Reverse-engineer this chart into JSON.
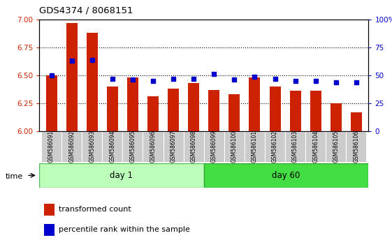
{
  "title": "GDS4374 / 8068151",
  "samples": [
    "GSM586091",
    "GSM586092",
    "GSM586093",
    "GSM586094",
    "GSM586095",
    "GSM586096",
    "GSM586097",
    "GSM586098",
    "GSM586099",
    "GSM586100",
    "GSM586101",
    "GSM586102",
    "GSM586103",
    "GSM586104",
    "GSM586105",
    "GSM586106"
  ],
  "red_values": [
    6.5,
    6.97,
    6.88,
    6.4,
    6.48,
    6.31,
    6.38,
    6.43,
    6.37,
    6.33,
    6.48,
    6.4,
    6.36,
    6.36,
    6.25,
    6.17
  ],
  "blue_values": [
    50,
    63,
    64,
    47,
    46,
    45,
    47,
    47,
    51,
    46,
    49,
    47,
    45,
    45,
    44,
    44
  ],
  "day1_count": 8,
  "day60_count": 8,
  "ylim_left": [
    6.0,
    7.0
  ],
  "ylim_right": [
    0,
    100
  ],
  "yticks_left": [
    6.0,
    6.25,
    6.5,
    6.75,
    7.0
  ],
  "yticks_right": [
    0,
    25,
    50,
    75,
    100
  ],
  "bar_color": "#cc2200",
  "dot_color": "#0000cc",
  "day1_color": "#bbffbb",
  "day60_color": "#44dd44",
  "xlabel_area_color": "#cccccc",
  "legend_red_label": "transformed count",
  "legend_blue_label": "percentile rank within the sample",
  "time_label": "time",
  "day1_label": "day 1",
  "day60_label": "day 60",
  "bar_width": 0.55
}
